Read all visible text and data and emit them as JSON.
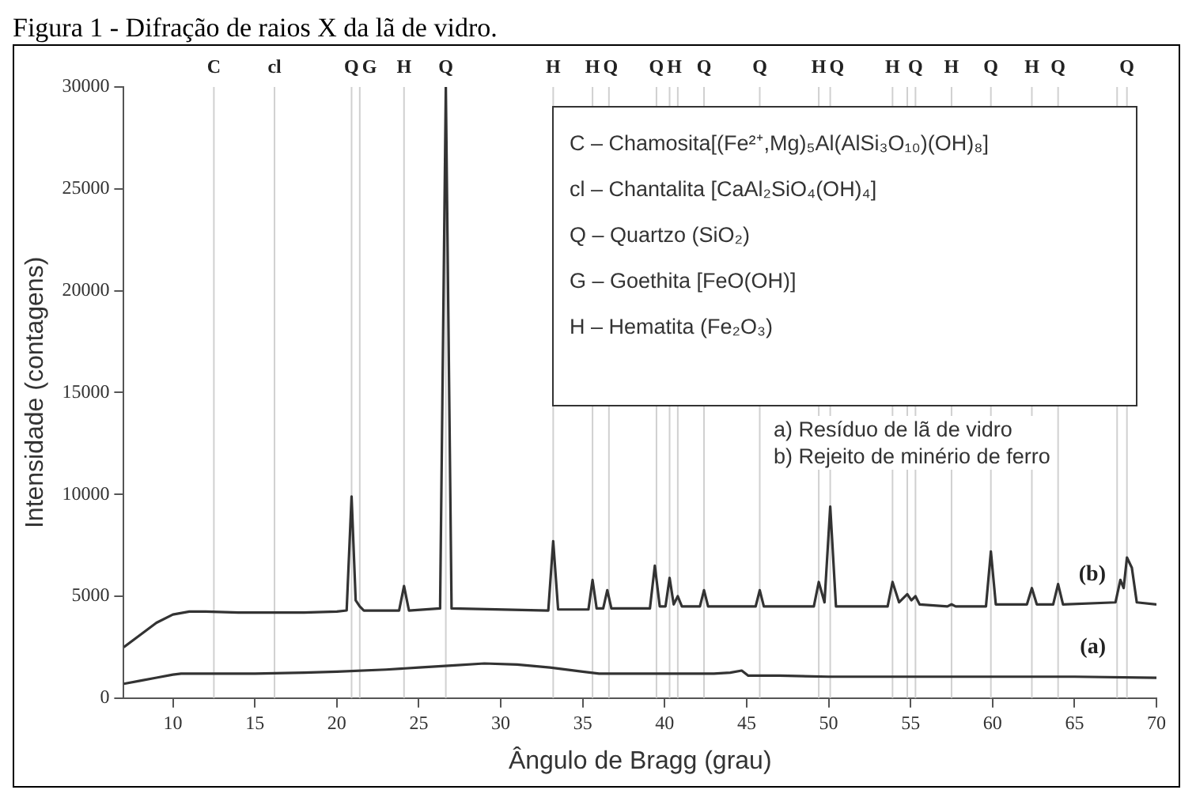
{
  "chart_data": {
    "type": "line",
    "title": "Figura 1 - Difração de raios X da lã de vidro.",
    "xlabel": "Ângulo de Bragg (grau)",
    "ylabel": "Intensidade (contagens)",
    "xlim": [
      7,
      70
    ],
    "ylim": [
      0,
      30000
    ],
    "xticks": [
      10,
      15,
      20,
      25,
      30,
      35,
      40,
      45,
      50,
      55,
      60,
      65,
      70
    ],
    "yticks": [
      0,
      5000,
      10000,
      15000,
      20000,
      25000,
      30000
    ],
    "grid": false,
    "legend": false,
    "marker": "none",
    "line_style": "solid",
    "series": [
      {
        "name": "(b)",
        "color": "#333333",
        "x": [
          7,
          8,
          9,
          10,
          11,
          12,
          14,
          16,
          18,
          20,
          20.6,
          20.9,
          21.15,
          21.4,
          21.65,
          23.8,
          24.1,
          24.4,
          26.3,
          26.65,
          27.0,
          32.9,
          33.2,
          33.5,
          35.35,
          35.6,
          35.85,
          36.25,
          36.5,
          36.75,
          39.1,
          39.4,
          39.7,
          40.05,
          40.3,
          40.55,
          40.8,
          41.05,
          42.15,
          42.4,
          42.65,
          45.55,
          45.8,
          46.05,
          49.1,
          49.4,
          49.75,
          50.1,
          50.45,
          53.6,
          53.9,
          54.3,
          54.8,
          55.05,
          55.3,
          55.55,
          57.25,
          57.5,
          57.75,
          59.6,
          59.9,
          60.2,
          62.1,
          62.4,
          62.7,
          63.7,
          64.0,
          64.3,
          67.5,
          67.8,
          68.0,
          68.2,
          68.5,
          68.8,
          70
        ],
        "values": [
          2500,
          3100,
          3700,
          4100,
          4250,
          4250,
          4200,
          4200,
          4200,
          4250,
          4300,
          9900,
          4800,
          4500,
          4300,
          4300,
          5500,
          4300,
          4400,
          30000,
          4400,
          4300,
          7700,
          4350,
          4350,
          5800,
          4400,
          4400,
          5300,
          4400,
          4400,
          6500,
          4500,
          4500,
          5900,
          4600,
          5000,
          4500,
          4500,
          5300,
          4500,
          4500,
          5300,
          4500,
          4500,
          5700,
          4700,
          9400,
          4500,
          4500,
          5700,
          4700,
          5100,
          4800,
          5000,
          4600,
          4500,
          4600,
          4500,
          4500,
          7200,
          4600,
          4600,
          5400,
          4600,
          4600,
          5600,
          4600,
          4700,
          5800,
          5400,
          6900,
          6400,
          4700,
          4600
        ]
      },
      {
        "name": "(a)",
        "color": "#333333",
        "x": [
          7,
          8,
          9,
          10,
          10.5,
          12,
          15,
          18,
          20,
          23,
          25,
          27,
          29,
          31,
          33,
          35,
          36,
          40,
          43,
          44,
          44.7,
          45.1,
          47,
          50,
          55,
          60,
          65,
          70
        ],
        "values": [
          700,
          850,
          1000,
          1150,
          1200,
          1200,
          1200,
          1250,
          1300,
          1400,
          1500,
          1600,
          1700,
          1650,
          1500,
          1300,
          1200,
          1200,
          1200,
          1250,
          1350,
          1100,
          1100,
          1050,
          1050,
          1050,
          1050,
          1000
        ]
      }
    ],
    "ref_lines": [
      {
        "axis": "x",
        "value": 12.5,
        "label": "C"
      },
      {
        "axis": "x",
        "value": 16.2,
        "label": "cl"
      },
      {
        "axis": "x",
        "value": 20.9,
        "label": "Q"
      },
      {
        "axis": "x",
        "value": 21.4,
        "label": "G"
      },
      {
        "axis": "x",
        "value": 24.1,
        "label": "H"
      },
      {
        "axis": "x",
        "value": 26.65,
        "label": "Q"
      },
      {
        "axis": "x",
        "value": 33.2,
        "label": "H"
      },
      {
        "axis": "x",
        "value": 35.6,
        "label": "H"
      },
      {
        "axis": "x",
        "value": 36.6,
        "label": "Q"
      },
      {
        "axis": "x",
        "value": 39.5,
        "label": "Q"
      },
      {
        "axis": "x",
        "value": 40.3,
        "label": "H"
      },
      {
        "axis": "x",
        "value": 40.8
      },
      {
        "axis": "x",
        "value": 42.4,
        "label": "Q"
      },
      {
        "axis": "x",
        "value": 45.8,
        "label": "Q"
      },
      {
        "axis": "x",
        "value": 49.4,
        "label": "H"
      },
      {
        "axis": "x",
        "value": 50.1,
        "label": "Q"
      },
      {
        "axis": "x",
        "value": 53.9,
        "label": "H"
      },
      {
        "axis": "x",
        "value": 54.8
      },
      {
        "axis": "x",
        "value": 55.3,
        "label": "Q"
      },
      {
        "axis": "x",
        "value": 57.5,
        "label": "H"
      },
      {
        "axis": "x",
        "value": 59.9,
        "label": "Q"
      },
      {
        "axis": "x",
        "value": 62.4,
        "label": "H"
      },
      {
        "axis": "x",
        "value": 64.0,
        "label": "Q"
      },
      {
        "axis": "x",
        "value": 67.6
      },
      {
        "axis": "x",
        "value": 68.2,
        "label": "Q"
      }
    ],
    "annotations": [
      "C – Chamosita[(Fe²⁺,Mg)₅Al(AlSi₃O₁₀)(OH)₈]",
      "cl – Chantalita [CaAl₂SiO₄(OH)₄]",
      "Q – Quartzo (SiO₂)",
      "G – Goethita [FeO(OH)]",
      "H – Hematita (Fe₂O₃)",
      "a) Resíduo de lã de vidro",
      "b) Rejeito de minério de ferro"
    ]
  }
}
